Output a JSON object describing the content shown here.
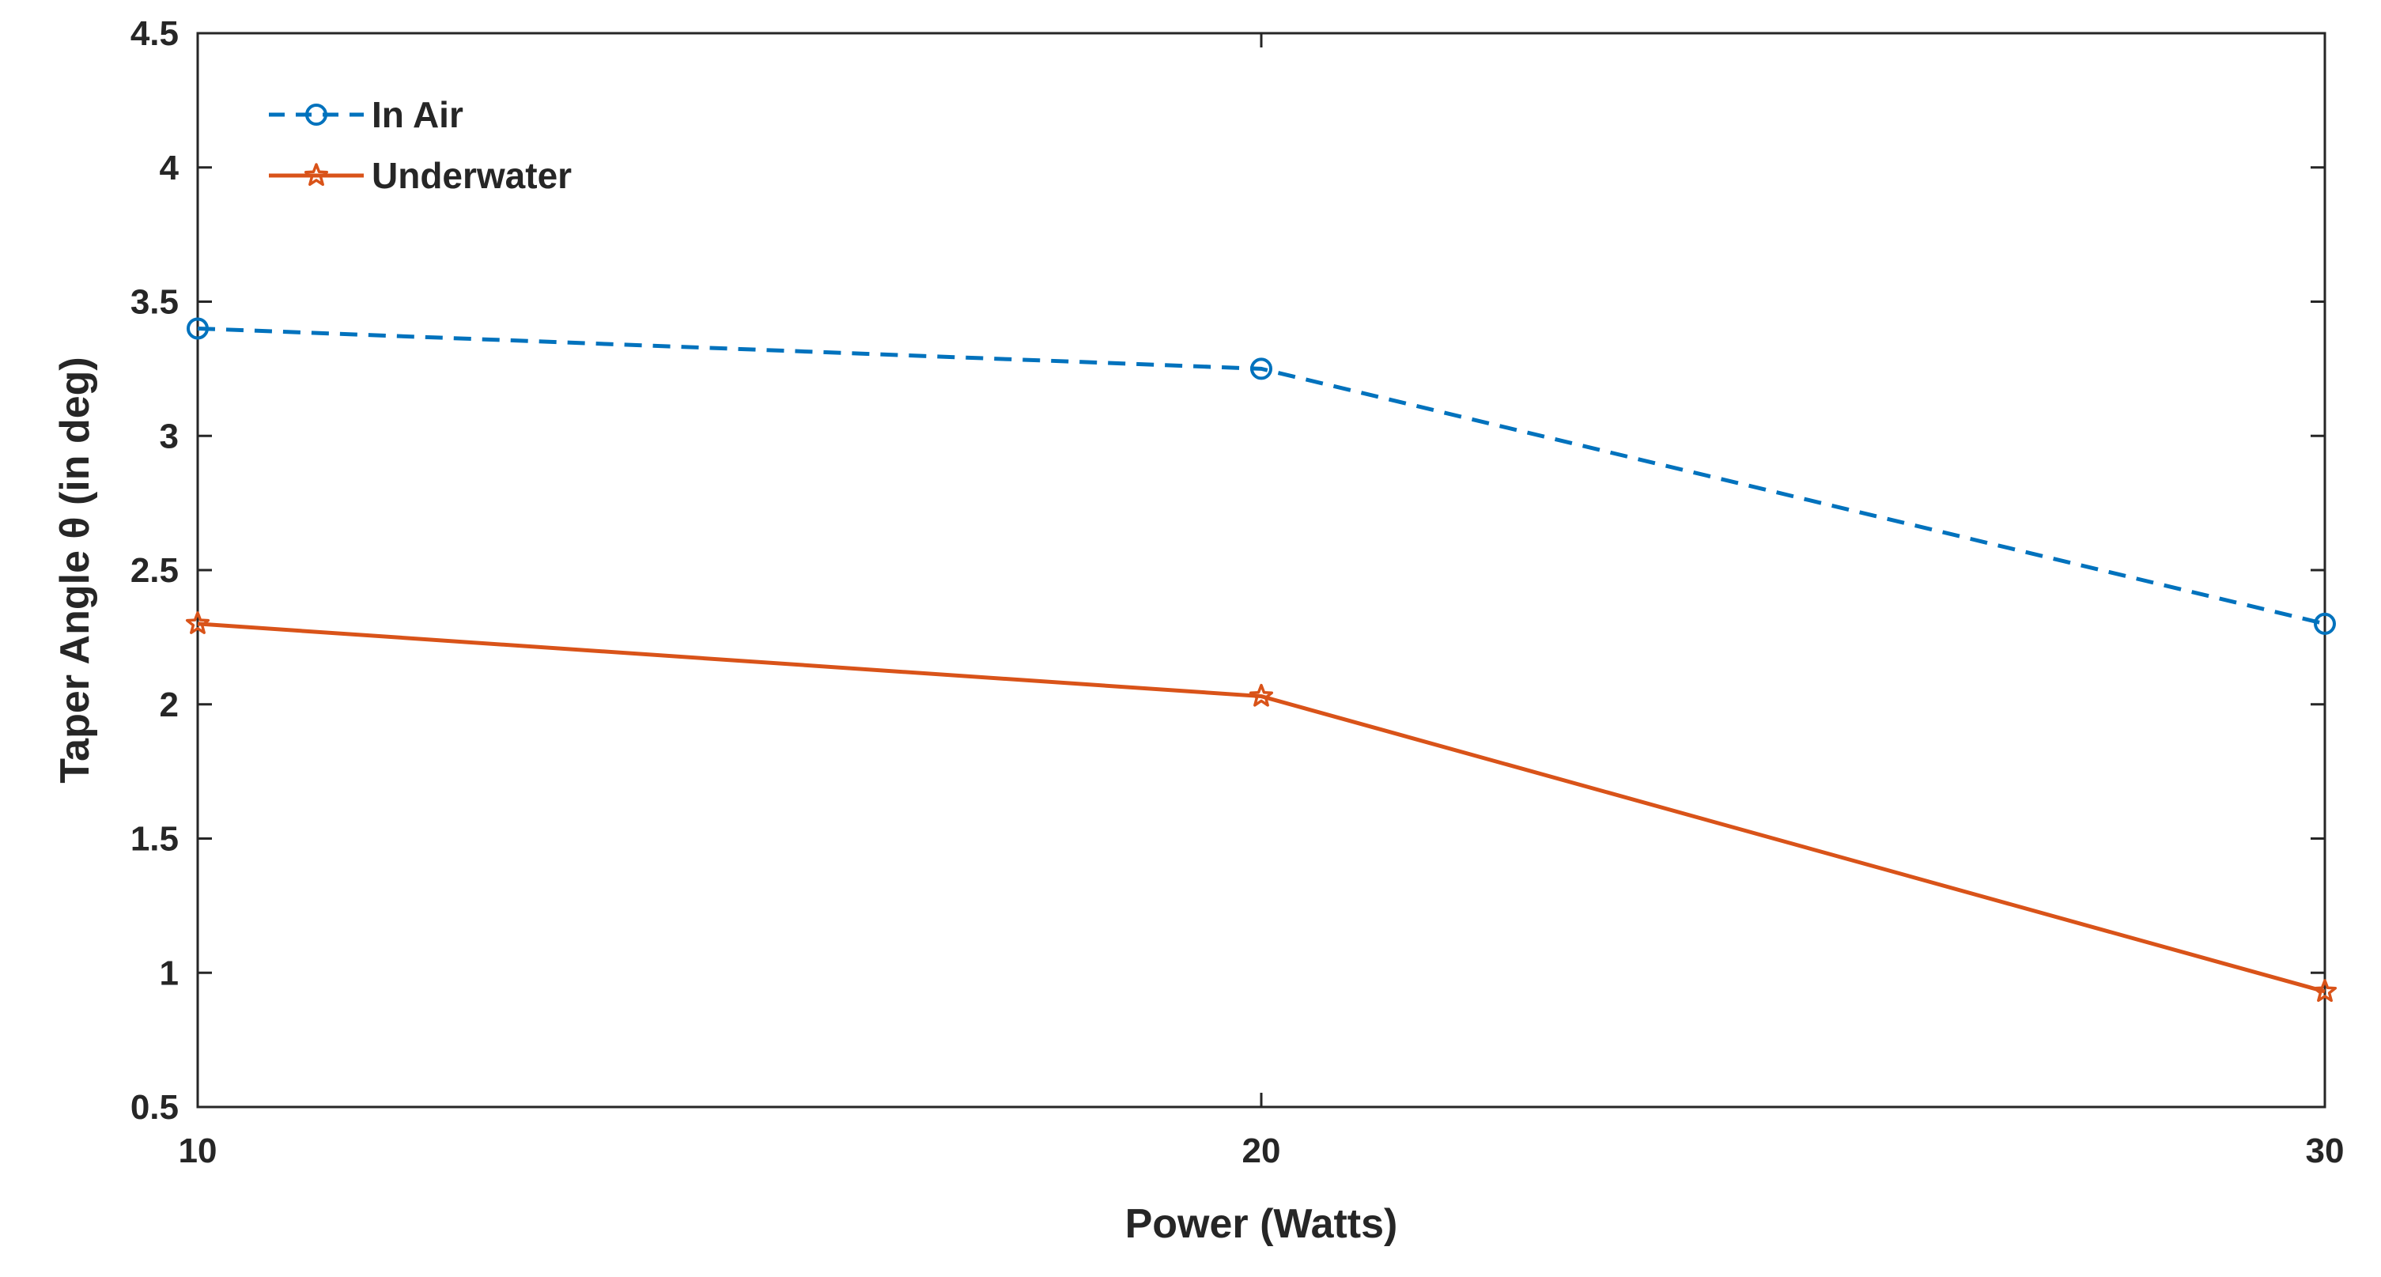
{
  "chart_data": {
    "type": "line",
    "title": "",
    "xlabel": "Power (Watts)",
    "ylabel": "Taper Angle θ (in deg)",
    "x": [
      10,
      20,
      30
    ],
    "xticks": [
      "10",
      "20",
      "30"
    ],
    "xlim": [
      10,
      30
    ],
    "ylim": [
      0.5,
      4.5
    ],
    "yticks": [
      "0.5",
      "1",
      "1.5",
      "2",
      "2.5",
      "3",
      "3.5",
      "4",
      "4.5"
    ],
    "grid": false,
    "legend_position": "top-left",
    "series": [
      {
        "name": "In Air",
        "values": [
          3.4,
          3.25,
          2.3
        ],
        "color": "#0072BD",
        "line_style": "dashed",
        "marker": "circle"
      },
      {
        "name": "Underwater",
        "values": [
          2.3,
          2.03,
          0.93
        ],
        "color": "#D95319",
        "line_style": "solid",
        "marker": "star"
      }
    ]
  }
}
